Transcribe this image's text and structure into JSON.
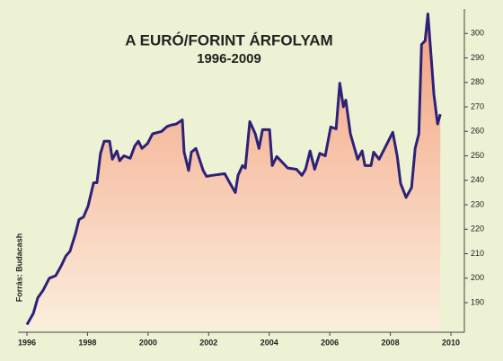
{
  "chart_data": {
    "type": "area",
    "title": "A EURÓ/FORINT ÁRFOLYAM",
    "subtitle": "1996-2009",
    "source": "Forrás: Budacash",
    "x": [
      1996.0,
      1996.21,
      1996.36,
      1996.53,
      1996.74,
      1996.95,
      1997.13,
      1997.28,
      1997.42,
      1997.6,
      1997.72,
      1997.87,
      1998.02,
      1998.2,
      1998.31,
      1998.43,
      1998.55,
      1998.73,
      1998.82,
      1998.97,
      1999.06,
      1999.2,
      1999.41,
      1999.56,
      1999.68,
      1999.8,
      1999.98,
      2000.15,
      2000.45,
      2000.63,
      2000.75,
      2000.93,
      2001.13,
      2001.19,
      2001.34,
      2001.43,
      2001.58,
      2001.82,
      2001.93,
      2002.11,
      2002.53,
      2002.71,
      2002.88,
      2002.97,
      2003.12,
      2003.21,
      2003.36,
      2003.54,
      2003.66,
      2003.78,
      2004.01,
      2004.1,
      2004.25,
      2004.46,
      2004.61,
      2004.9,
      2005.08,
      2005.2,
      2005.35,
      2005.5,
      2005.67,
      2005.85,
      2006.03,
      2006.21,
      2006.33,
      2006.45,
      2006.53,
      2006.68,
      2006.92,
      2007.07,
      2007.16,
      2007.36,
      2007.45,
      2007.63,
      2007.81,
      2008.08,
      2008.23,
      2008.34,
      2008.52,
      2008.7,
      2008.82,
      2008.94,
      2009.03,
      2009.15,
      2009.24,
      2009.35,
      2009.44,
      2009.56,
      2009.65
    ],
    "values": [
      181,
      185.6,
      192,
      195,
      200,
      201,
      205,
      209,
      211,
      218,
      224,
      225,
      229.5,
      239,
      239,
      251,
      256,
      256,
      248.6,
      252,
      248,
      250,
      249,
      254,
      256,
      253,
      255,
      259,
      260,
      262,
      262.5,
      263,
      264.7,
      251.5,
      244,
      251.5,
      253,
      244,
      241.6,
      242,
      242.7,
      238.7,
      235,
      242,
      246,
      245,
      264,
      259,
      253,
      260.7,
      260.7,
      246,
      249.7,
      247,
      245,
      244.5,
      242,
      244.5,
      252,
      244.5,
      251,
      250,
      261.8,
      261,
      279.7,
      270,
      272.8,
      259,
      248.6,
      252,
      246,
      246,
      251.5,
      248.6,
      253,
      259.6,
      249.7,
      238.7,
      233,
      237,
      253,
      259,
      295.5,
      297,
      308,
      290,
      275,
      263,
      267
    ],
    "color": "#2e2178",
    "fill_top": "#f3a07e",
    "fill_bottom": "#fbeedd",
    "xlim": [
      1996,
      2010
    ],
    "xticks": [
      1996,
      1998,
      2000,
      2002,
      2004,
      2006,
      2008,
      2010
    ],
    "ylim": [
      179,
      310
    ],
    "yticks": [
      190,
      200,
      210,
      220,
      230,
      240,
      250,
      260,
      270,
      280,
      290,
      300
    ],
    "y_axis_side": "right"
  }
}
